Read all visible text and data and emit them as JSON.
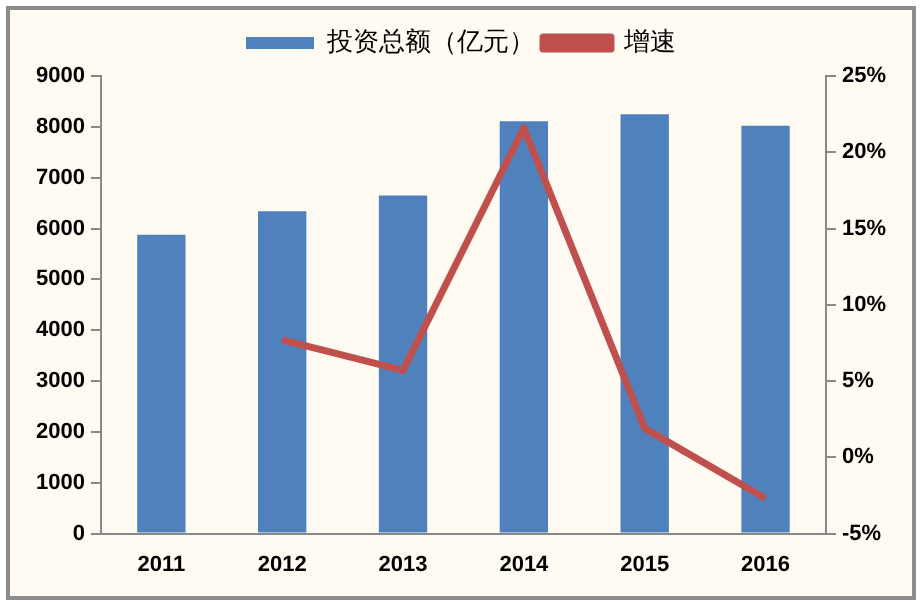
{
  "chart_data": {
    "type": "bar",
    "categories": [
      "2011",
      "2012",
      "2013",
      "2014",
      "2015",
      "2016"
    ],
    "series": [
      {
        "name": "投资总额（亿元）",
        "color": "#4f81bd",
        "values": [
          5880,
          6340,
          6650,
          8110,
          8250,
          8020
        ]
      },
      {
        "name": "增速",
        "type": "line",
        "axis": "y2",
        "color": "#c0504d",
        "values": [
          null,
          7.7,
          5.7,
          21.6,
          1.9,
          -2.7
        ]
      }
    ],
    "ylim": [
      0,
      9000
    ],
    "yticks": [
      0,
      1000,
      2000,
      3000,
      4000,
      5000,
      6000,
      7000,
      8000,
      9000
    ],
    "y2lim": [
      -5,
      25
    ],
    "y2ticks": [
      {
        "value": -5,
        "label": "-5%"
      },
      {
        "value": 0,
        "label": "0%"
      },
      {
        "value": 5,
        "label": "5%"
      },
      {
        "value": 10,
        "label": "10%"
      },
      {
        "value": 15,
        "label": "15%"
      },
      {
        "value": 20,
        "label": "20%"
      },
      {
        "value": 25,
        "label": "25%"
      }
    ],
    "grid": false,
    "legend": "top",
    "marker": "none"
  }
}
